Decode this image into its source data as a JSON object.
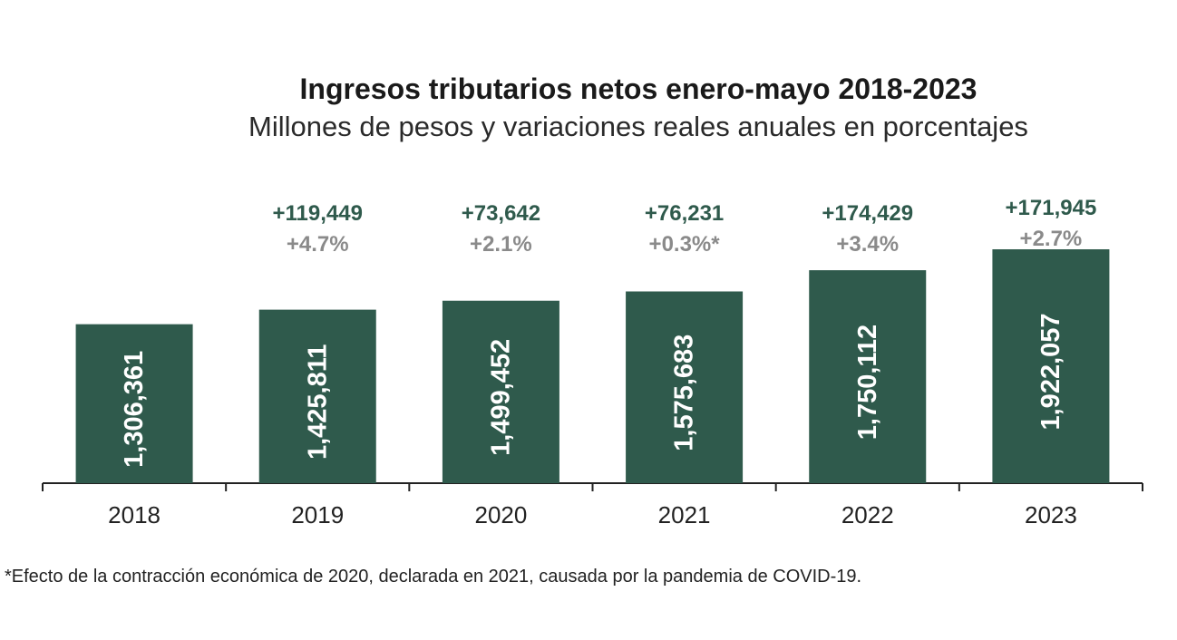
{
  "chart_data": {
    "type": "bar",
    "title": "Ingresos tributarios netos enero-mayo 2018-2023",
    "subtitle": "Millones de pesos y variaciones reales anuales en porcentajes",
    "categories": [
      "2018",
      "2019",
      "2020",
      "2021",
      "2022",
      "2023"
    ],
    "values": [
      1306361,
      1425811,
      1499452,
      1575683,
      1750112,
      1922057
    ],
    "value_labels": [
      "1,306,361",
      "1,425,811",
      "1,499,452",
      "1,575,683",
      "1,750,112",
      "1,922,057"
    ],
    "annotations": [
      null,
      {
        "abs": "+119,449",
        "pct": "+4.7%"
      },
      {
        "abs": "+73,642",
        "pct": "+2.1%"
      },
      {
        "abs": "+76,231",
        "pct": "+0.3%*"
      },
      {
        "abs": "+174,429",
        "pct": "+3.4%"
      },
      {
        "abs": "+171,945",
        "pct": "+2.7%"
      }
    ],
    "ylim": [
      0,
      1922057
    ],
    "xlabel": "",
    "ylabel": "",
    "footnote": "*Efecto de la contracción económica de 2020, declarada en 2021, causada por la pandemia de COVID-19.",
    "colors": {
      "bar": "#2f5a4c",
      "delta_abs": "#2f5a4c",
      "delta_pct": "#8a8a8a"
    }
  }
}
